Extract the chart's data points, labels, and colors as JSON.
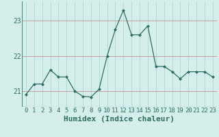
{
  "x": [
    0,
    1,
    2,
    3,
    4,
    5,
    6,
    7,
    8,
    9,
    10,
    11,
    12,
    13,
    14,
    15,
    16,
    17,
    18,
    19,
    20,
    21,
    22,
    23
  ],
  "y": [
    20.9,
    21.2,
    21.2,
    21.6,
    21.4,
    21.4,
    21.0,
    20.85,
    20.83,
    21.05,
    22.0,
    22.75,
    23.3,
    22.6,
    22.6,
    22.85,
    21.7,
    21.7,
    21.55,
    21.35,
    21.55,
    21.55,
    21.55,
    21.4
  ],
  "line_color": "#2d6e60",
  "marker": "D",
  "marker_size": 2.5,
  "bg_color": "#d4eeeb",
  "vgrid_color": "#b8d8d4",
  "hgrid_color": "#c8a8a0",
  "xlabel": "Humidex (Indice chaleur)",
  "xlabel_fontsize": 8,
  "yticks": [
    21,
    22,
    23
  ],
  "ylim": [
    20.55,
    23.55
  ],
  "xlim": [
    -0.5,
    23.5
  ],
  "xtick_labels": [
    "0",
    "1",
    "2",
    "3",
    "4",
    "5",
    "6",
    "7",
    "8",
    "9",
    "10",
    "11",
    "12",
    "13",
    "14",
    "15",
    "16",
    "17",
    "18",
    "19",
    "20",
    "21",
    "22",
    "23"
  ],
  "tick_fontsize": 6.5
}
